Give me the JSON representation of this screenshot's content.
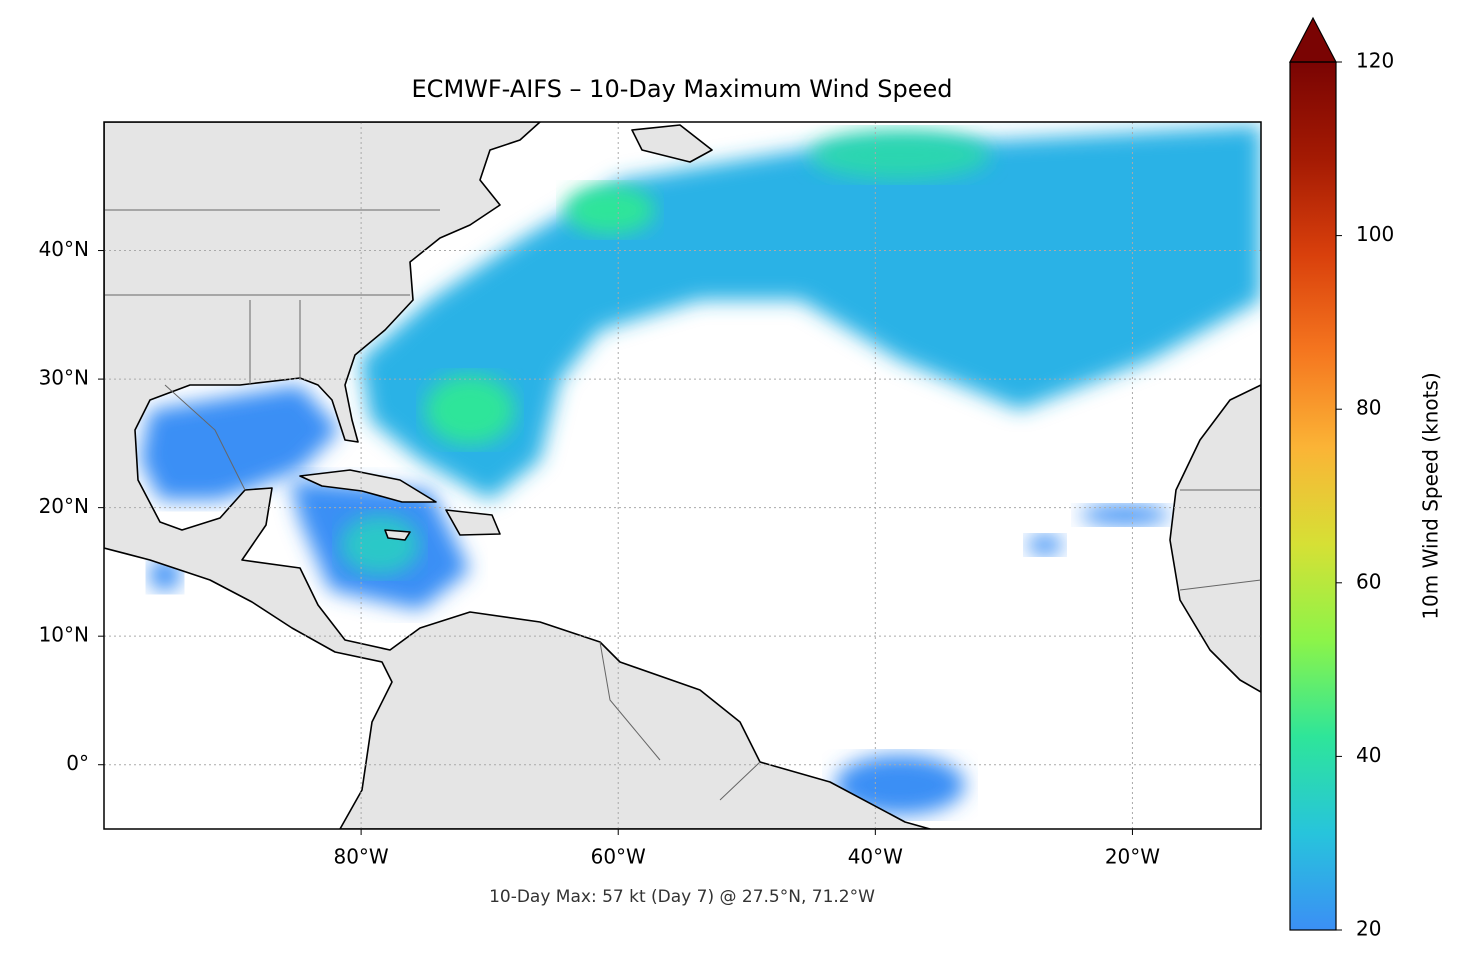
{
  "chart_data": {
    "type": "map",
    "title": "ECMWF-AIFS – 10-Day Maximum Wind Speed",
    "annotation": "10-Day Max: 57 kt (Day 7) @ 27.5°N, 71.2°W",
    "xlim": [
      -100,
      -10
    ],
    "ylim": [
      -5,
      50
    ],
    "xticks": [
      {
        "value": -80,
        "label": "80°W"
      },
      {
        "value": -60,
        "label": "60°W"
      },
      {
        "value": -40,
        "label": "40°W"
      },
      {
        "value": -20,
        "label": "20°W"
      }
    ],
    "yticks": [
      {
        "value": 0,
        "label": "0°"
      },
      {
        "value": 10,
        "label": "10°N"
      },
      {
        "value": 20,
        "label": "20°N"
      },
      {
        "value": 30,
        "label": "30°N"
      },
      {
        "value": 40,
        "label": "40°N"
      }
    ],
    "grid": true,
    "colorbar": {
      "label": "10m Wind Speed (knots)",
      "lim": [
        20,
        120
      ],
      "ticks": [
        20,
        40,
        60,
        80,
        100,
        120
      ],
      "colors": [
        "#3b8ff5",
        "#27c4dc",
        "#2ee59a",
        "#8cf449",
        "#d6e035",
        "#fbb436",
        "#f5761f",
        "#d9400c",
        "#a41a03",
        "#7a0403"
      ],
      "extend": "max"
    }
  }
}
